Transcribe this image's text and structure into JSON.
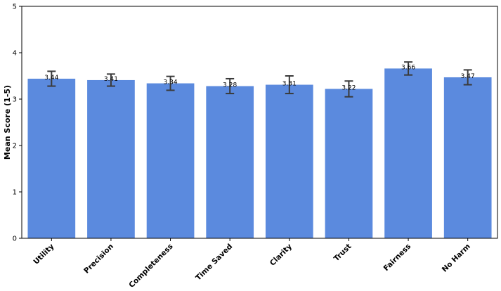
{
  "chart_data": {
    "type": "bar",
    "ylabel": "Mean Score (1-5)",
    "categories": [
      "Utility",
      "Precision",
      "Completeness",
      "Time Saved",
      "Clarity",
      "Trust",
      "Fairness",
      "No Harm"
    ],
    "values": [
      3.44,
      3.41,
      3.34,
      3.28,
      3.31,
      3.22,
      3.66,
      3.47
    ],
    "errors": [
      0.16,
      0.13,
      0.15,
      0.16,
      0.19,
      0.17,
      0.14,
      0.16
    ],
    "color": "#5b8ade",
    "ylim": [
      0,
      5
    ],
    "yticks": [
      0,
      1,
      2,
      3,
      4,
      5
    ],
    "grid": false
  }
}
